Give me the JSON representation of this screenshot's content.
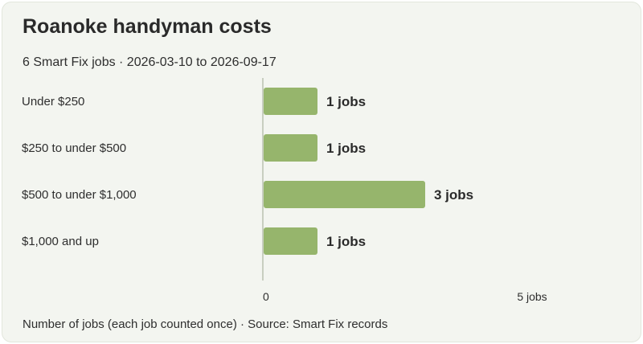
{
  "header": {
    "title": "Roanoke handyman costs",
    "subtitle": "6 Smart Fix jobs · 2026-03-10 to 2026-09-17"
  },
  "footer": {
    "note": "Number of jobs (each job counted once) · Source: Smart Fix records"
  },
  "colors": {
    "bar": "#96b56c",
    "axis": "#b9c2b0"
  },
  "chart_data": {
    "type": "bar",
    "orientation": "horizontal",
    "categories": [
      "Under $250",
      "$250 to under $500",
      "$500 to under $1,000",
      "$1,000 and up"
    ],
    "values": [
      1,
      1,
      3,
      1
    ],
    "value_labels": [
      "1 jobs",
      "1 jobs",
      "3 jobs",
      "1 jobs"
    ],
    "xlim": [
      0,
      5
    ],
    "x_ticks": [
      {
        "value": 0,
        "label": "0"
      },
      {
        "value": 5,
        "label": "5 jobs"
      }
    ],
    "grid": false
  }
}
